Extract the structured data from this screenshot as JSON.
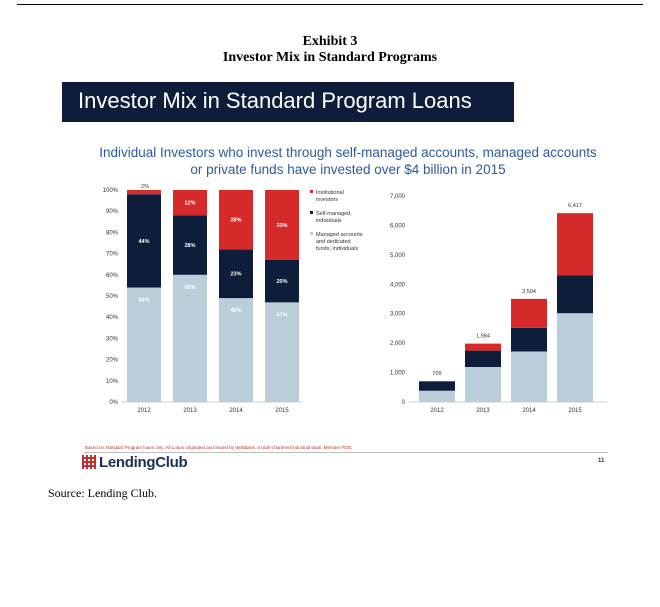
{
  "exhibit": {
    "number": "Exhibit 3",
    "title": "Investor Mix in Standard Programs"
  },
  "slide": {
    "banner": "Investor Mix in Standard Program Loans",
    "subtitle_line1": "Individual Investors who invest through self-managed accounts, managed accounts",
    "subtitle_line2": "or private funds have invested over $4 billion in 2015",
    "footnote": "Based on Standard Program loans only. All Loans originated and issued by WebBank, a Utah-chartered industrial bank. Member FDIC",
    "logo_text": "LendingClub",
    "page_number": "11"
  },
  "colors": {
    "institutional": "#d62a2a",
    "self_managed": "#0e1d3a",
    "managed": "#b9ced9",
    "banner": "#0e1d3a",
    "subtitle": "#2d5a9c"
  },
  "source": "Source: Lending Club.",
  "chart_data": [
    {
      "type": "bar",
      "stacked": true,
      "categories": [
        "2012",
        "2013",
        "2014",
        "2015"
      ],
      "series": [
        {
          "name": "Managed accounts and dedicated funds, individuals",
          "values": [
            54,
            60,
            49,
            47
          ],
          "labels": [
            "54%",
            "60%",
            "49%",
            "47%"
          ]
        },
        {
          "name": "Self-managed, individuals",
          "values": [
            44,
            28,
            23,
            20
          ],
          "labels": [
            "44%",
            "28%",
            "23%",
            "20%"
          ]
        },
        {
          "name": "Institutional investors",
          "values": [
            2,
            12,
            28,
            33
          ],
          "labels": [
            "2%",
            "12%",
            "28%",
            "33%"
          ]
        }
      ],
      "y_ticks": [
        "0%",
        "10%",
        "20%",
        "30%",
        "40%",
        "50%",
        "60%",
        "70%",
        "80%",
        "90%",
        "100%"
      ],
      "ylim": [
        0,
        100
      ],
      "legend": [
        {
          "label_lines": [
            "Institutional",
            "investors"
          ],
          "series": 2
        },
        {
          "label_lines": [
            "Self-managed,",
            "individuals"
          ],
          "series": 1
        },
        {
          "label_lines": [
            "Managed accounts",
            "and dedicated",
            "funds, individuals"
          ],
          "series": 0
        }
      ]
    },
    {
      "type": "bar",
      "stacked": true,
      "unit": "$M",
      "categories": [
        "2012",
        "2013",
        "2014",
        "2015"
      ],
      "totals": [
        709,
        1984,
        3504,
        6417
      ],
      "total_labels": [
        "709",
        "1,984",
        "3,504",
        "6,417"
      ],
      "series": [
        {
          "name": "Managed accounts and dedicated funds, individuals",
          "values": [
            383,
            1190,
            1717,
            3016
          ]
        },
        {
          "name": "Self-managed, individuals",
          "values": [
            312,
            556,
            806,
            1283
          ]
        },
        {
          "name": "Institutional investors",
          "values": [
            14,
            238,
            981,
            2118
          ]
        }
      ],
      "y_ticks": [
        "0",
        "1,000",
        "2,000",
        "3,000",
        "4,000",
        "5,000",
        "6,000",
        "7,000"
      ],
      "ylim": [
        0,
        7000
      ]
    }
  ]
}
